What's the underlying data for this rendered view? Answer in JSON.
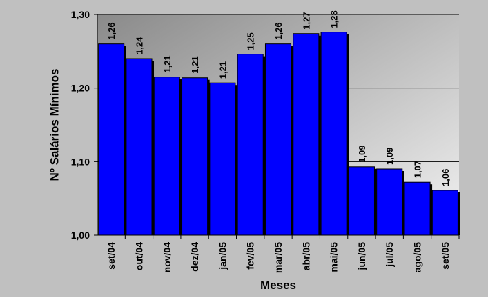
{
  "chart_data": {
    "type": "bar",
    "categories": [
      "set/04",
      "out/04",
      "nov/04",
      "dez/04",
      "jan/05",
      "fev/05",
      "mar/05",
      "abr/05",
      "mai/05",
      "jun/05",
      "jul/05",
      "ago/05",
      "set/05"
    ],
    "values": [
      1.26,
      1.24,
      1.215,
      1.214,
      1.207,
      1.246,
      1.26,
      1.274,
      1.276,
      1.093,
      1.09,
      1.072,
      1.061
    ],
    "data_labels": [
      "1,26",
      "1,24",
      "1,21",
      "1,21",
      "1,21",
      "1,25",
      "1,26",
      "1,27",
      "1,28",
      "1,09",
      "1,09",
      "1,07",
      "1,06"
    ],
    "title": "",
    "xlabel": "Meses",
    "ylabel": "Nº Salários Mínimos",
    "ylim": [
      1.0,
      1.3
    ],
    "yticks": [
      1.0,
      1.1,
      1.2,
      1.3
    ],
    "ytick_labels": [
      "1,00",
      "1,10",
      "1,20",
      "1,30"
    ],
    "grid": true,
    "legend": "none",
    "colors": {
      "bar": "#0000ff",
      "plot_background": "#808080",
      "chart_background": "#c0c0c0",
      "gridline": "#000000"
    }
  }
}
